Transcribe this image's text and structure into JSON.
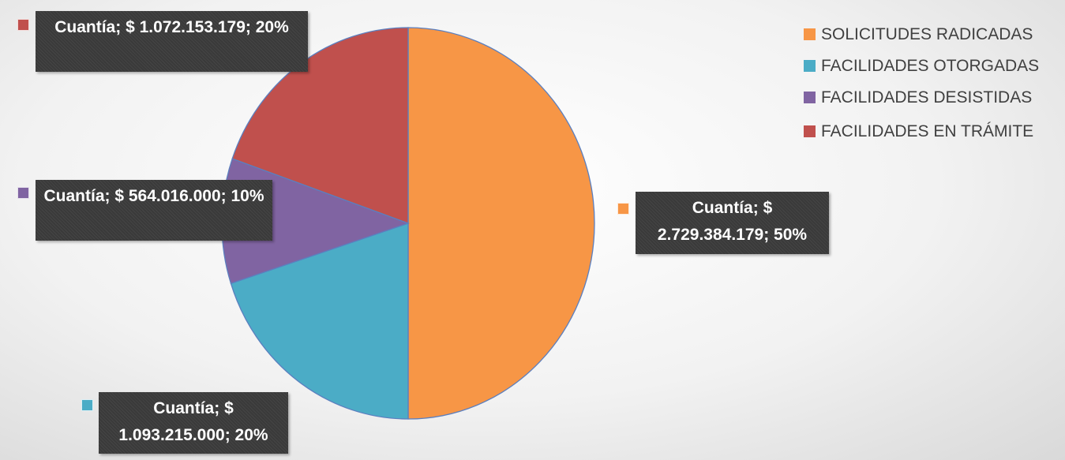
{
  "chart_data": {
    "type": "pie",
    "categories": [
      "SOLICITUDES RADICADAS",
      "FACILIDADES OTORGADAS",
      "FACILIDADES DESISTIDAS",
      "FACILIDADES EN TRÁMITE"
    ],
    "values": [
      2729384179,
      1093215000,
      564016000,
      1072153179
    ],
    "value_labels": [
      "Cuantía; $ 2.729.384.179; 50%",
      "Cuantía; $ 1.093.215.000; 20%",
      "Cuantía; $ 564.016.000; 10%",
      "Cuantía; $ 1.072.153.179; 20%"
    ],
    "colors": [
      "#f79646",
      "#4bacc6",
      "#8064a2",
      "#c0504d"
    ],
    "legend": true
  }
}
